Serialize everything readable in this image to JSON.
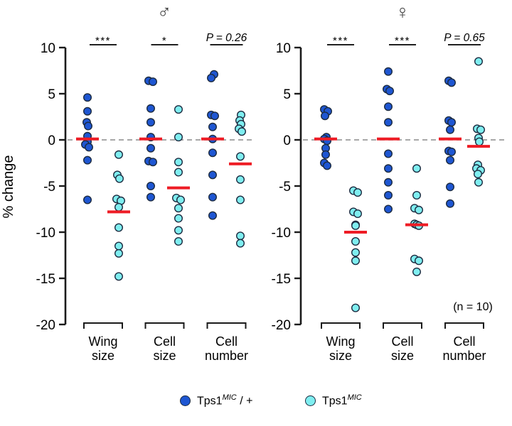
{
  "chart_data": {
    "type": "scatter",
    "ylabel": "% change",
    "ylim": [
      -20,
      10
    ],
    "yticks": [
      10,
      5,
      0,
      -5,
      -10,
      -15,
      -20
    ],
    "zero_line": true,
    "grid": false,
    "categories": [
      [
        "Wing",
        "size"
      ],
      [
        "Cell",
        "size"
      ],
      [
        "Cell",
        "number"
      ]
    ],
    "n_label": "(n = 10)",
    "mean_line_note": "red horizontal bar = group mean",
    "panels": [
      {
        "title": "♂",
        "sig": [
          "***",
          "*",
          "P = 0.26"
        ],
        "groups": [
          {
            "category": "Wing size",
            "genotype": "Tps1MIC/+",
            "mean": 0.1,
            "values": [
              4.6,
              3.1,
              1.9,
              1.5,
              0.4,
              -0.2,
              -0.5,
              -0.8,
              -2.2,
              -6.5
            ],
            "dx": [
              0,
              0,
              -1,
              1,
              0,
              0,
              -3,
              2,
              0,
              0
            ]
          },
          {
            "category": "Wing size",
            "genotype": "Tps1MIC",
            "mean": -7.8,
            "values": [
              -1.6,
              -3.8,
              -4.2,
              -6.4,
              -6.6,
              -7.3,
              -9.5,
              -11.5,
              -12.3,
              -14.8
            ],
            "dx": [
              0,
              -2,
              1,
              -3,
              3,
              0,
              0,
              0,
              0,
              0
            ]
          },
          {
            "category": "Cell size",
            "genotype": "Tps1MIC/+",
            "mean": 0.1,
            "values": [
              6.4,
              6.3,
              3.4,
              1.9,
              0.3,
              -0.9,
              -2.3,
              -2.4,
              -5.0,
              -6.2
            ],
            "dx": [
              -3,
              3,
              0,
              0,
              0,
              0,
              -3,
              3,
              0,
              0
            ]
          },
          {
            "category": "Cell size",
            "genotype": "Tps1MIC",
            "mean": -5.2,
            "values": [
              3.3,
              0.3,
              -2.4,
              -3.5,
              -6.3,
              -6.5,
              -7.4,
              -8.5,
              -9.8,
              -11.0
            ],
            "dx": [
              0,
              0,
              0,
              0,
              -3,
              3,
              0,
              0,
              0,
              0
            ]
          },
          {
            "category": "Cell number",
            "genotype": "Tps1MIC/+",
            "mean": 0.1,
            "values": [
              7.1,
              6.7,
              2.7,
              2.6,
              1.4,
              0.1,
              -1.4,
              -3.8,
              -6.2,
              -8.2
            ],
            "dx": [
              2,
              -2,
              -2,
              3,
              0,
              0,
              0,
              0,
              0,
              0
            ]
          },
          {
            "category": "Cell number",
            "genotype": "Tps1MIC",
            "mean": -2.6,
            "values": [
              2.7,
              2.1,
              1.7,
              1.2,
              0.9,
              -1.8,
              -4.3,
              -6.5,
              -10.4,
              -11.2
            ],
            "dx": [
              1,
              -1,
              1,
              -2,
              2,
              0,
              0,
              0,
              0,
              0
            ]
          }
        ]
      },
      {
        "title": "♀",
        "sig": [
          "***",
          "***",
          "P = 0.65"
        ],
        "groups": [
          {
            "category": "Wing size",
            "genotype": "Tps1MIC/+",
            "mean": 0.1,
            "values": [
              3.3,
              3.1,
              2.6,
              0.3,
              0.1,
              -0.1,
              -0.9,
              -1.6,
              -2.5,
              -2.8
            ],
            "dx": [
              -2,
              3,
              -1,
              1,
              -2,
              2,
              0,
              0,
              -2,
              2
            ]
          },
          {
            "category": "Wing size",
            "genotype": "Tps1MIC",
            "mean": -10.0,
            "values": [
              -5.5,
              -5.7,
              -7.8,
              -8.0,
              -9.2,
              -9.3,
              -11.0,
              -12.2,
              -13.1,
              -18.2
            ],
            "dx": [
              -3,
              3,
              -3,
              3,
              0,
              0,
              0,
              0,
              0,
              0
            ]
          },
          {
            "category": "Cell size",
            "genotype": "Tps1MIC/+",
            "mean": 0.1,
            "values": [
              7.4,
              5.5,
              5.3,
              3.6,
              1.9,
              -1.5,
              -3.1,
              -4.6,
              -6.0,
              -7.5
            ],
            "dx": [
              0,
              -2,
              2,
              0,
              0,
              0,
              0,
              0,
              0,
              0
            ]
          },
          {
            "category": "Cell size",
            "genotype": "Tps1MIC",
            "mean": -9.2,
            "values": [
              -3.1,
              -6.0,
              -7.4,
              -7.6,
              -9.1,
              -9.2,
              -9.3,
              -12.9,
              -13.1,
              -14.3
            ],
            "dx": [
              0,
              0,
              -3,
              3,
              -3,
              0,
              3,
              -3,
              3,
              0
            ]
          },
          {
            "category": "Cell number",
            "genotype": "Tps1MIC/+",
            "mean": 0.1,
            "values": [
              6.4,
              6.2,
              2.1,
              1.9,
              1.1,
              -1.2,
              -1.3,
              -2.2,
              -5.1,
              -6.9
            ],
            "dx": [
              -2,
              2,
              -2,
              2,
              0,
              -2,
              2,
              0,
              0,
              0
            ]
          },
          {
            "category": "Cell number",
            "genotype": "Tps1MIC",
            "mean": -0.7,
            "values": [
              8.5,
              1.2,
              1.1,
              0.2,
              -0.2,
              -2.7,
              -3.1,
              -3.3,
              -3.7,
              -4.6
            ],
            "dx": [
              0,
              -2,
              3,
              0,
              1,
              -1,
              -3,
              3,
              -1,
              0
            ]
          }
        ]
      }
    ]
  },
  "legend": {
    "items": [
      {
        "name": "Tps1",
        "sup": "MIC",
        "suffix": " / +",
        "color": "#1e56d2"
      },
      {
        "name": "Tps1",
        "sup": "MIC",
        "suffix": "",
        "color": "#7feef0"
      }
    ]
  },
  "colors": {
    "control_fill": "#1e56d2",
    "mutant_fill": "#7feef0",
    "marker_stroke": "#1c2b40",
    "mean_line": "#ee1c25",
    "zero_line": "#8c8c8c",
    "axis": "#1a1a1a",
    "sig_bar": "#000000"
  }
}
